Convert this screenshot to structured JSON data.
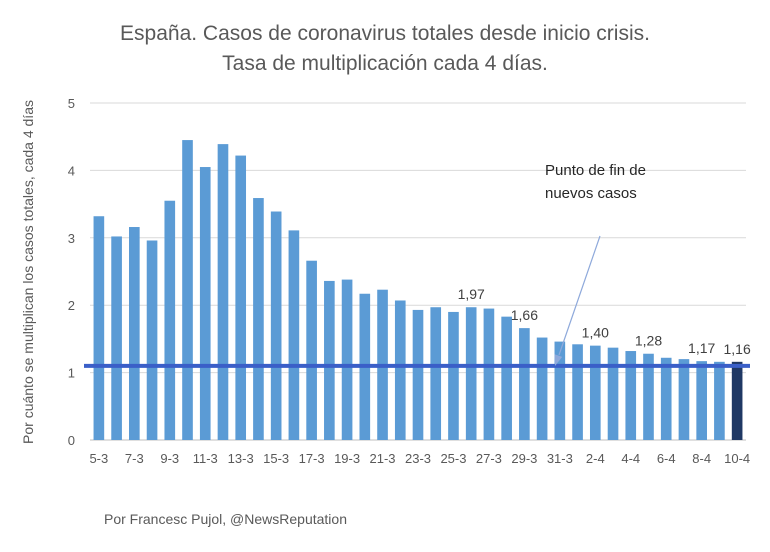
{
  "chart_data": {
    "type": "bar",
    "title": [
      "España. Casos de coronavirus totales desde inicio crisis.",
      "Tasa de multiplicación cada 4 días."
    ],
    "ylabel": "Por cuánto se multiplican los casos totales, cada 4 días",
    "xlabel": "",
    "ylim": [
      0,
      5
    ],
    "yticks": [
      0,
      1,
      2,
      3,
      4,
      5
    ],
    "grid": true,
    "categories": [
      "5-3",
      "6-3",
      "7-3",
      "8-3",
      "9-3",
      "10-3",
      "11-3",
      "12-3",
      "13-3",
      "14-3",
      "15-3",
      "16-3",
      "17-3",
      "18-3",
      "19-3",
      "20-3",
      "21-3",
      "22-3",
      "23-3",
      "24-3",
      "25-3",
      "26-3",
      "27-3",
      "28-3",
      "29-3",
      "30-3",
      "31-3",
      "1-4",
      "2-4",
      "3-4",
      "4-4",
      "5-4",
      "6-4",
      "7-4",
      "8-4",
      "9-4",
      "10-4"
    ],
    "x_tick_labels": [
      "5-3",
      "7-3",
      "9-3",
      "11-3",
      "13-3",
      "15-3",
      "17-3",
      "19-3",
      "21-3",
      "23-3",
      "25-3",
      "27-3",
      "29-3",
      "31-3",
      "2-4",
      "4-4",
      "6-4",
      "8-4",
      "10-4"
    ],
    "values": [
      3.32,
      3.02,
      3.16,
      2.96,
      3.55,
      4.45,
      4.05,
      4.39,
      4.22,
      3.59,
      3.39,
      3.11,
      2.66,
      2.36,
      2.38,
      2.17,
      2.23,
      2.07,
      1.93,
      1.97,
      1.9,
      1.97,
      1.95,
      1.83,
      1.66,
      1.52,
      1.46,
      1.42,
      1.4,
      1.37,
      1.32,
      1.28,
      1.22,
      1.2,
      1.17,
      1.16,
      1.16
    ],
    "bar_color": "#5b9bd5",
    "highlight_color": "#1f3864",
    "highlight_index": 36,
    "data_labels": [
      {
        "index": 21,
        "text": "1,97"
      },
      {
        "index": 24,
        "text": "1,66"
      },
      {
        "index": 28,
        "text": "1,40"
      },
      {
        "index": 31,
        "text": "1,28"
      },
      {
        "index": 34,
        "text": "1,17"
      },
      {
        "index": 36,
        "text": "1,16"
      }
    ],
    "reference_line": {
      "value": 1.1,
      "color": "#3a5fc8"
    },
    "annotation": {
      "lines": [
        "Punto de fin de",
        "nuevos casos"
      ],
      "arrow_color": "#8ea9db"
    }
  },
  "credit": "Por Francesc Pujol, @NewsReputation"
}
